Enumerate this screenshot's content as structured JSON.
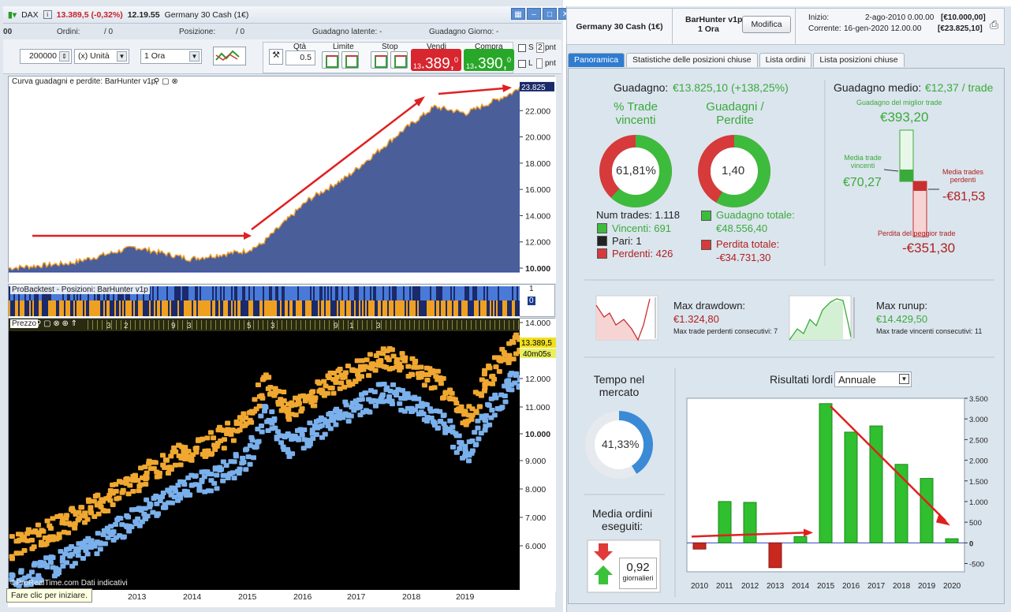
{
  "topbar": {
    "instrument": "DAX",
    "price_change": "13.389,5 (-0,32%)",
    "time": "12.19.55",
    "contract": "Germany 30 Cash (1€)"
  },
  "row2": {
    "ordini_label": "Ordini:",
    "ordini_value": "0",
    "ordini_total": "/ 0",
    "posizione_label": "Posizione:",
    "posizione_value": "0",
    "posizione_total": "/ 0",
    "guadagno_latente": "Guadagno latente: -",
    "guadagno_giorno": "Guadagno Giorno: -"
  },
  "toolbar": {
    "quantity": "200000",
    "unit": "(x) Unità",
    "timeframe": "1 Ora",
    "qta_label": "Qtà",
    "qta_value": "0.5",
    "limite_label": "Limite",
    "stop_label": "Stop",
    "vendi_label": "Vendi",
    "compra_label": "Compra",
    "sell_prefix": "13",
    "sell_price": ".389,",
    "sell_suffix": "0",
    "buy_prefix": "13",
    "buy_price": ".390,",
    "buy_suffix": "0",
    "s_label": "S",
    "s_value": "2",
    "l_label": "L",
    "pnt": "pnt"
  },
  "panel_titles": {
    "equity": "Curva guadagni e perdite: BarHunter v1p",
    "positions": "ProBacktest - Posizioni: BarHunter v1p",
    "price": "Prezzo"
  },
  "equity_axis": {
    "ticks": [
      "22.000",
      "20.000",
      "18.000",
      "16.000",
      "14.000",
      "12.000",
      "10.000"
    ],
    "last": "23.825"
  },
  "positions_axis": {
    "top": "1",
    "bottom": "0"
  },
  "price_axis": {
    "ticks": [
      "14.000",
      "12.000",
      "11.000",
      "10.000",
      "9.000",
      "8.000",
      "7.000",
      "6.000"
    ],
    "last": "13.389,5",
    "countdown": "40m05s"
  },
  "price_strip": [
    "3",
    "2",
    "9",
    "3",
    "5",
    "3",
    "9",
    "1",
    "3"
  ],
  "years": [
    "2013",
    "2014",
    "2015",
    "2016",
    "2017",
    "2018",
    "2019"
  ],
  "tooltip": "Fare clic per iniziare.",
  "watermark": "©ProRealTime.com  Dati indicativi",
  "right_header": {
    "contract": "Germany 30 Cash (1€)",
    "system": "BarHunter v1p",
    "system_tf": "1 Ora",
    "modify": "Modifica",
    "inizio_label": "Inizio:",
    "inizio_value": "2-ago-2010 0.00.00",
    "inizio_capital": "[€10.000,00]",
    "corrente_label": "Corrente:",
    "corrente_value": "16-gen-2020 12.00.00",
    "corrente_capital": "[€23.825,10]"
  },
  "tabs": [
    "Panoramica",
    "Statistiche delle posizioni chiuse",
    "Lista ordini",
    "Lista posizioni chiuse"
  ],
  "summary": {
    "gain_label": "Guadagno:",
    "gain_value": "€13.825,10 (+138,25%)",
    "win_pct_title": "% Trade vincenti",
    "win_pct": "61,81%",
    "gp_title": "Guadagni / Perdite",
    "gp_ratio": "1,40",
    "num_trades": "Num trades: 1.118",
    "vincenti": "Vincenti: 691",
    "pari": "Pari: 1",
    "perdenti": "Perdenti: 426",
    "gain_total_label": "Guadagno totale:",
    "gain_total": "€48.556,40",
    "loss_total_label": "Perdita totale:",
    "loss_total": "-€34.731,30",
    "avg_gain_label": "Guadagno medio:",
    "avg_gain": "€12,37 / trade",
    "best_label": "Guadagno del miglior trade",
    "best": "€393,20",
    "avg_win_label": "Media trade vincenti",
    "avg_win": "€70,27",
    "avg_loss_label": "Media trades perdenti",
    "avg_loss": "-€81,53",
    "worst_label": "Perdita del peggior trade",
    "worst": "-€351,30",
    "dd_label": "Max drawdown:",
    "dd_value": "€1.324,80",
    "dd_sub": "Max trade perdenti consecutivi: 7",
    "ru_label": "Max runup:",
    "ru_value": "€14.429,50",
    "ru_sub": "Max trade vincenti consecutivi: 11",
    "tm_title": "Tempo nel mercato",
    "tm_value": "41,33%",
    "mo_title": "Media ordini eseguiti:",
    "mo_value": "0,92",
    "mo_unit": "giornalieri",
    "res_label": "Risultati lordi",
    "res_select": "Annuale"
  },
  "chart_data": {
    "type": "bar",
    "title": "Risultati lordi",
    "categories": [
      "2010",
      "2011",
      "2012",
      "2013",
      "2014",
      "2015",
      "2016",
      "2017",
      "2018",
      "2019",
      "2020"
    ],
    "values": [
      -150,
      1000,
      980,
      -600,
      150,
      3370,
      2680,
      2830,
      1900,
      1560,
      100
    ],
    "ylim": [
      -700,
      3500
    ],
    "yticks": [
      3500,
      3000,
      2500,
      2000,
      1500,
      1000,
      500,
      0,
      -500
    ],
    "ytick_labels": [
      "3.500",
      "3.000",
      "2.500",
      "2.000",
      "1.500",
      "1.000",
      "500",
      "0",
      "-500"
    ],
    "colors": {
      "positive": "#2fbf2f",
      "negative": "#c8281e"
    }
  }
}
